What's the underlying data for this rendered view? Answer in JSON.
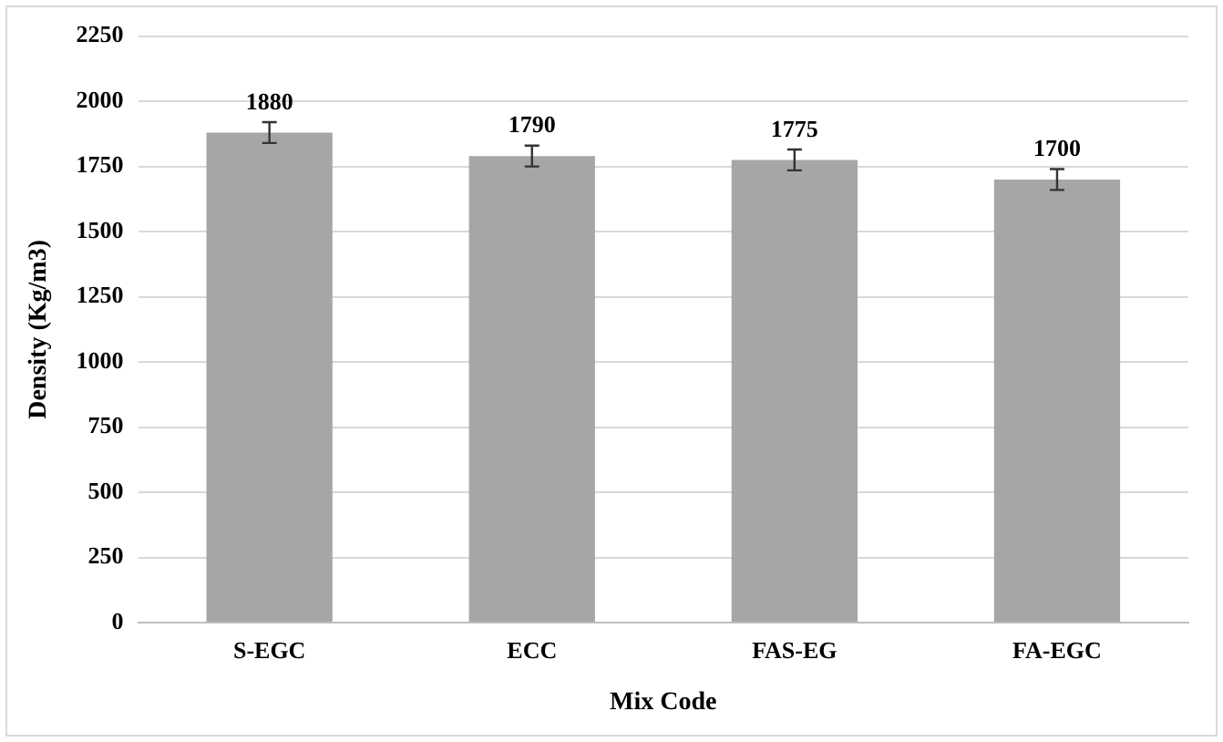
{
  "chart_data": {
    "type": "bar",
    "xlabel": "Mix Code",
    "ylabel": "Density (Kg/m3)",
    "categories": [
      "S-EGC",
      "ECC",
      "FAS-EG",
      "FA-EGC"
    ],
    "values": [
      1880,
      1790,
      1775,
      1700
    ],
    "errors": [
      40,
      40,
      40,
      40
    ],
    "color": "#a6a6a6",
    "ylim": [
      0,
      2250
    ],
    "yticks": [
      0,
      250,
      500,
      750,
      1000,
      1250,
      1500,
      1750,
      2000,
      2250
    ],
    "grid": "y",
    "data_labels": true
  }
}
